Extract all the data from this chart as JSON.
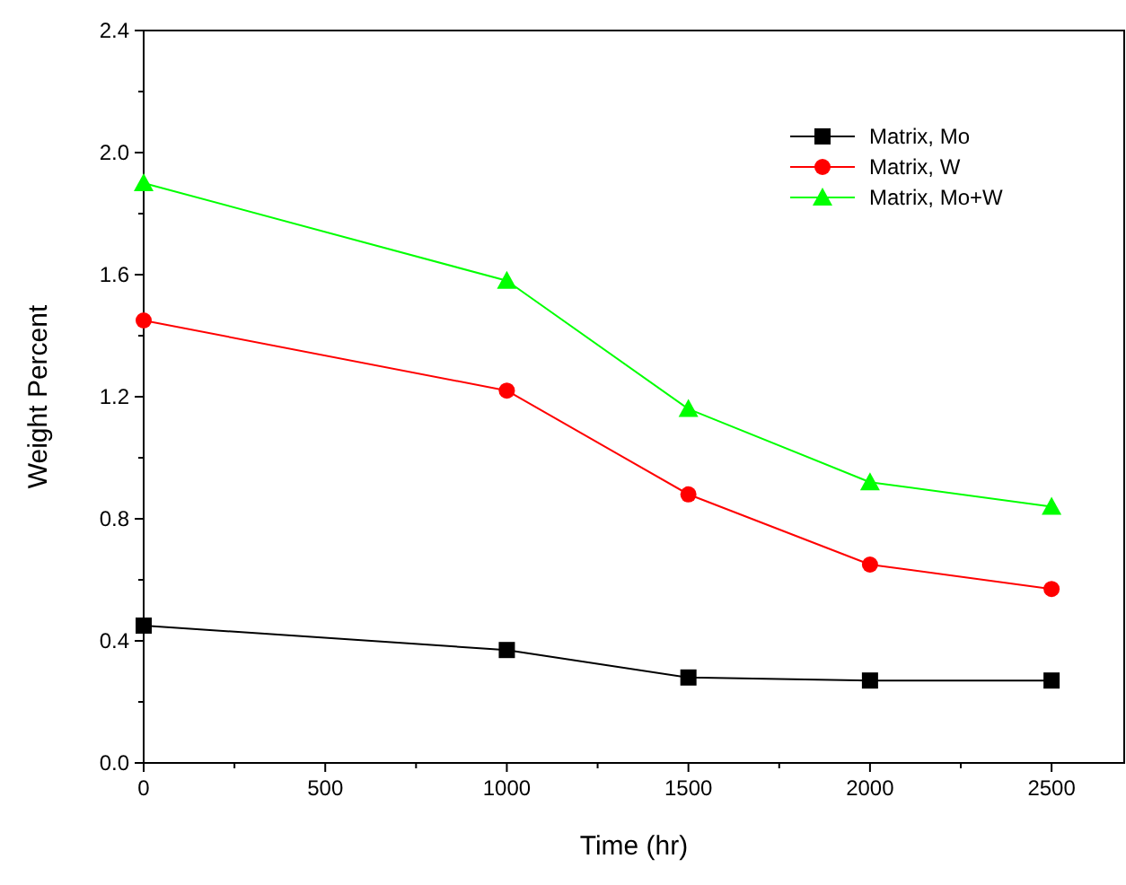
{
  "chart_data": {
    "type": "line",
    "xlabel": "Time (hr)",
    "ylabel": "Weight Percent",
    "x": [
      0,
      1000,
      1500,
      2000,
      2500
    ],
    "series": [
      {
        "name": "Matrix, Mo",
        "color": "#000000",
        "marker": "square",
        "values": [
          0.45,
          0.37,
          0.28,
          0.27,
          0.27
        ]
      },
      {
        "name": "Matrix, W",
        "color": "#ff0000",
        "marker": "circle",
        "values": [
          1.45,
          1.22,
          0.88,
          0.65,
          0.57
        ]
      },
      {
        "name": "Matrix, Mo+W",
        "color": "#00ff00",
        "marker": "triangle",
        "values": [
          1.9,
          1.58,
          1.16,
          0.92,
          0.84
        ]
      }
    ],
    "xlim": [
      0,
      2700
    ],
    "ylim": [
      0,
      2.4
    ],
    "xticks": [
      0,
      {
        "value": 250,
        "label": null
      },
      500,
      {
        "value": 750,
        "label": null
      },
      1000,
      {
        "value": 1250,
        "label": null
      },
      1500,
      {
        "value": 1750,
        "label": null
      },
      2000,
      {
        "value": 2250,
        "label": null
      },
      2500
    ],
    "yticks": [
      {
        "value": 0,
        "label": "0.0"
      },
      {
        "value": 0.2,
        "label": null
      },
      0.4,
      {
        "value": 0.6,
        "label": null
      },
      0.8,
      {
        "value": 1,
        "label": null
      },
      1.2,
      {
        "value": 1.4,
        "label": null
      },
      1.6,
      {
        "value": 1.8,
        "label": null
      },
      {
        "value": 2,
        "label": "2.0"
      },
      {
        "value": 2.2,
        "label": null
      },
      2.4
    ],
    "legend": "top right",
    "grid": false,
    "line_style": "solid"
  }
}
